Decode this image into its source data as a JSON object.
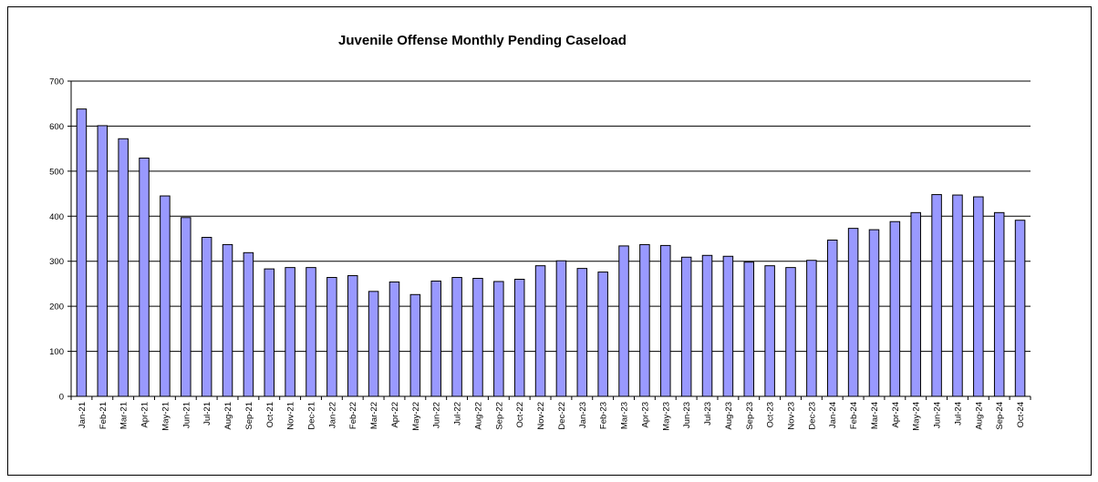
{
  "chart_data": {
    "type": "bar",
    "title": "Juvenile Offense Monthly Pending Caseload",
    "xlabel": "",
    "ylabel": "",
    "ylim": [
      0,
      700
    ],
    "yticks": [
      0,
      100,
      200,
      300,
      400,
      500,
      600,
      700
    ],
    "grid": true,
    "legend": "none",
    "bar_color": "#9999ff",
    "categories": [
      "Jan-21",
      "Feb-21",
      "Mar-21",
      "Apr-21",
      "May-21",
      "Jun-21",
      "Jul-21",
      "Aug-21",
      "Sep-21",
      "Oct-21",
      "Nov-21",
      "Dec-21",
      "Jan-22",
      "Feb-22",
      "Mar-22",
      "Apr-22",
      "May-22",
      "Jun-22",
      "Jul-22",
      "Aug-22",
      "Sep-22",
      "Oct-22",
      "Nov-22",
      "Dec-22",
      "Jan-23",
      "Feb-23",
      "Mar-23",
      "Apr-23",
      "May-23",
      "Jun-23",
      "Jul-23",
      "Aug-23",
      "Sep-23",
      "Oct-23",
      "Nov-23",
      "Dec-23",
      "Jan-24",
      "Feb-24",
      "Mar-24",
      "Apr-24",
      "May-24",
      "Jun-24",
      "Jul-24",
      "Aug-24",
      "Sep-24",
      "Oct-24"
    ],
    "values": [
      638,
      601,
      572,
      529,
      445,
      397,
      353,
      337,
      319,
      283,
      286,
      286,
      264,
      268,
      233,
      254,
      226,
      256,
      264,
      262,
      255,
      260,
      290,
      301,
      284,
      276,
      334,
      337,
      335,
      309,
      313,
      311,
      298,
      290,
      286,
      302,
      347,
      373,
      370,
      388,
      408,
      448,
      447,
      443,
      408,
      391
    ]
  }
}
